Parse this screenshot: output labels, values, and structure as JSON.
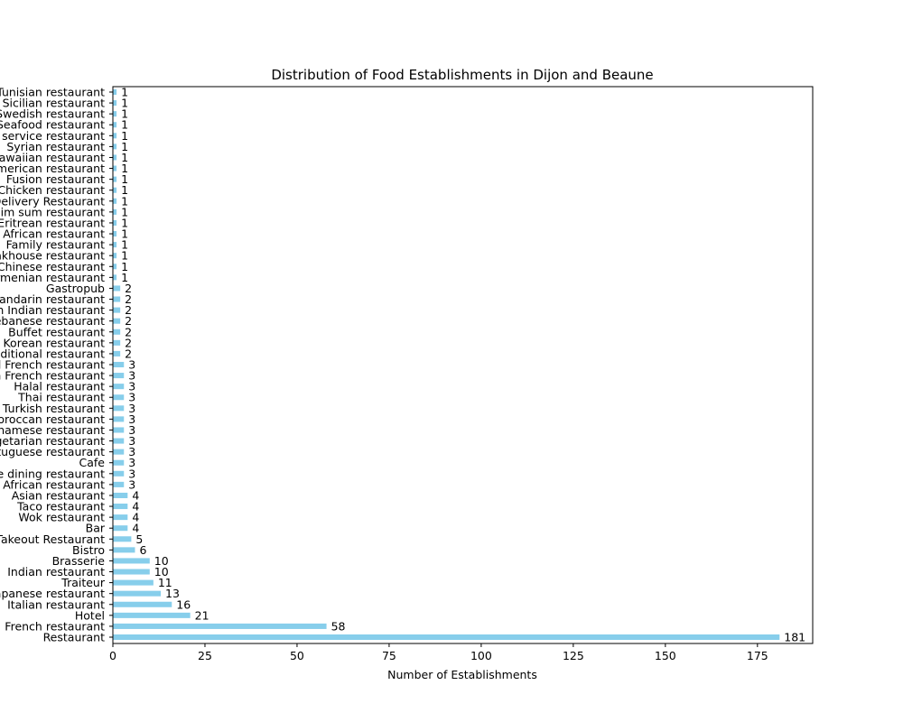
{
  "chart_data": {
    "type": "bar",
    "orientation": "horizontal",
    "title": "Distribution of Food Establishments in Dijon and Beaune",
    "xlabel": "Number of Establishments",
    "ylabel": "",
    "xlim": [
      0,
      190
    ],
    "xticks": [
      0,
      25,
      50,
      75,
      100,
      125,
      150,
      175
    ],
    "bar_color": "#87ceeb",
    "grid": false,
    "categories": [
      "Restaurant",
      "French restaurant",
      "Hotel",
      "Italian restaurant",
      "Japanese restaurant",
      "Traiteur",
      "Indian restaurant",
      "Brasserie",
      "Bistro",
      "Takeout Restaurant",
      "Bar",
      "Wok restaurant",
      "Taco restaurant",
      "Asian restaurant",
      "African restaurant",
      "Fine dining restaurant",
      "Cafe",
      "Portuguese restaurant",
      "Vegetarian restaurant",
      "Vietnamese restaurant",
      "Moroccan restaurant",
      "Turkish restaurant",
      "Thai restaurant",
      "Halal restaurant",
      "Modern French restaurant",
      "Traditional French restaurant",
      "Traditional restaurant",
      "Korean restaurant",
      "Buffet restaurant",
      "Lebanese restaurant",
      "North Indian restaurant",
      "Mandarin restaurant",
      "Gastropub",
      "Armenian restaurant",
      "Chinese restaurant",
      "Steakhouse restaurant",
      "Family restaurant",
      "South African restaurant",
      "Eritrean restaurant",
      "Dim sum restaurant",
      "Delivery Restaurant",
      "Chicken restaurant",
      "Fusion restaurant",
      "American restaurant",
      "Hawaiian restaurant",
      "Syrian restaurant",
      "Self service restaurant",
      "Seafood restaurant",
      "Swedish restaurant",
      "Sicilian restaurant",
      "Tunisian restaurant"
    ],
    "values": [
      181,
      58,
      21,
      16,
      13,
      11,
      10,
      10,
      6,
      5,
      4,
      4,
      4,
      4,
      3,
      3,
      3,
      3,
      3,
      3,
      3,
      3,
      3,
      3,
      3,
      3,
      2,
      2,
      2,
      2,
      2,
      2,
      2,
      1,
      1,
      1,
      1,
      1,
      1,
      1,
      1,
      1,
      1,
      1,
      1,
      1,
      1,
      1,
      1,
      1,
      1
    ]
  }
}
